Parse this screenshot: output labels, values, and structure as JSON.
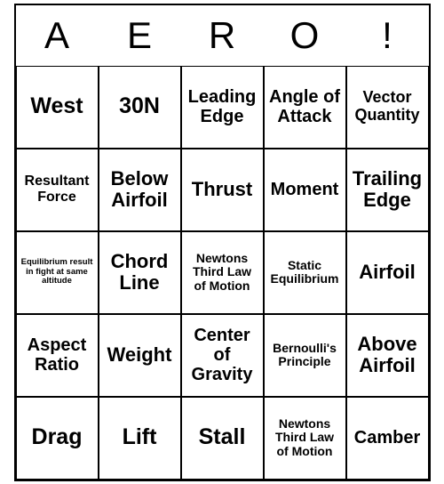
{
  "header": [
    "A",
    "E",
    "R",
    "O",
    "!"
  ],
  "cells": [
    [
      {
        "t": "West",
        "cls": "fs-xxl"
      },
      {
        "t": "30N",
        "cls": "fs-xxl"
      },
      {
        "t": "Leading Edge",
        "cls": "fs-l"
      },
      {
        "t": "Angle of Attack",
        "cls": "fs-l"
      },
      {
        "t": "Vector Quantity",
        "cls": "fs-m"
      }
    ],
    [
      {
        "t": "Resultant Force",
        "cls": "fs-s"
      },
      {
        "t": "Below Airfoil",
        "cls": "fs-xl"
      },
      {
        "t": "Thrust",
        "cls": "fs-xl"
      },
      {
        "t": "Moment",
        "cls": "fs-l"
      },
      {
        "t": "Trailing Edge",
        "cls": "fs-xl"
      }
    ],
    [
      {
        "t": "Equilibrium result in fight at same altitude",
        "cls": "fs-tiny"
      },
      {
        "t": "Chord Line",
        "cls": "fs-xl"
      },
      {
        "t": "Newtons Third Law of Motion",
        "cls": "fs-xs"
      },
      {
        "t": "Static Equilibrium",
        "cls": "fs-xs"
      },
      {
        "t": "Airfoil",
        "cls": "fs-xl"
      }
    ],
    [
      {
        "t": "Aspect Ratio",
        "cls": "fs-l"
      },
      {
        "t": "Weight",
        "cls": "fs-xl"
      },
      {
        "t": "Center of Gravity",
        "cls": "fs-l"
      },
      {
        "t": "Bernoulli's Principle",
        "cls": "fs-xs"
      },
      {
        "t": "Above Airfoil",
        "cls": "fs-xl"
      }
    ],
    [
      {
        "t": "Drag",
        "cls": "fs-xxl"
      },
      {
        "t": "Lift",
        "cls": "fs-xxl"
      },
      {
        "t": "Stall",
        "cls": "fs-xxl"
      },
      {
        "t": "Newtons Third Law of Motion",
        "cls": "fs-xs"
      },
      {
        "t": "Camber",
        "cls": "fs-l"
      }
    ]
  ]
}
